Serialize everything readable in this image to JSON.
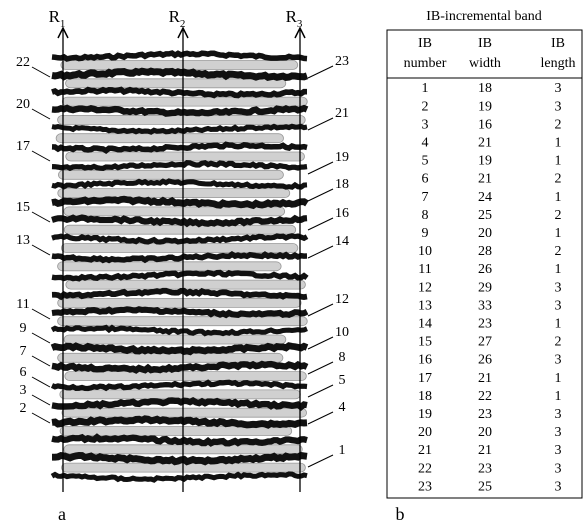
{
  "panel_a": {
    "label": "a",
    "axes": [
      {
        "name": "R",
        "subscript": "1"
      },
      {
        "name": "R",
        "subscript": "2"
      },
      {
        "name": "R",
        "subscript": "3"
      }
    ],
    "left_labels": [
      "22",
      "20",
      "17",
      "15",
      "13",
      "11",
      "9",
      "7",
      "6",
      "3",
      "2"
    ],
    "right_labels": [
      "23",
      "21",
      "19",
      "18",
      "16",
      "14",
      "12",
      "10",
      "8",
      "5",
      "4",
      "1"
    ]
  },
  "panel_b": {
    "label": "b",
    "title": "IB-incremental band",
    "headers": [
      [
        "IB",
        "number"
      ],
      [
        "IB",
        "width"
      ],
      [
        "IB",
        "length"
      ]
    ],
    "rows": [
      [
        1,
        18,
        3
      ],
      [
        2,
        19,
        3
      ],
      [
        3,
        16,
        2
      ],
      [
        4,
        21,
        1
      ],
      [
        5,
        19,
        1
      ],
      [
        6,
        21,
        2
      ],
      [
        7,
        24,
        1
      ],
      [
        8,
        25,
        2
      ],
      [
        9,
        20,
        1
      ],
      [
        10,
        28,
        2
      ],
      [
        11,
        26,
        1
      ],
      [
        12,
        29,
        3
      ],
      [
        13,
        33,
        3
      ],
      [
        14,
        23,
        1
      ],
      [
        15,
        27,
        2
      ],
      [
        16,
        26,
        3
      ],
      [
        17,
        21,
        1
      ],
      [
        18,
        22,
        1
      ],
      [
        19,
        23,
        3
      ],
      [
        20,
        20,
        3
      ],
      [
        21,
        21,
        3
      ],
      [
        22,
        23,
        3
      ],
      [
        23,
        25,
        3
      ]
    ]
  }
}
